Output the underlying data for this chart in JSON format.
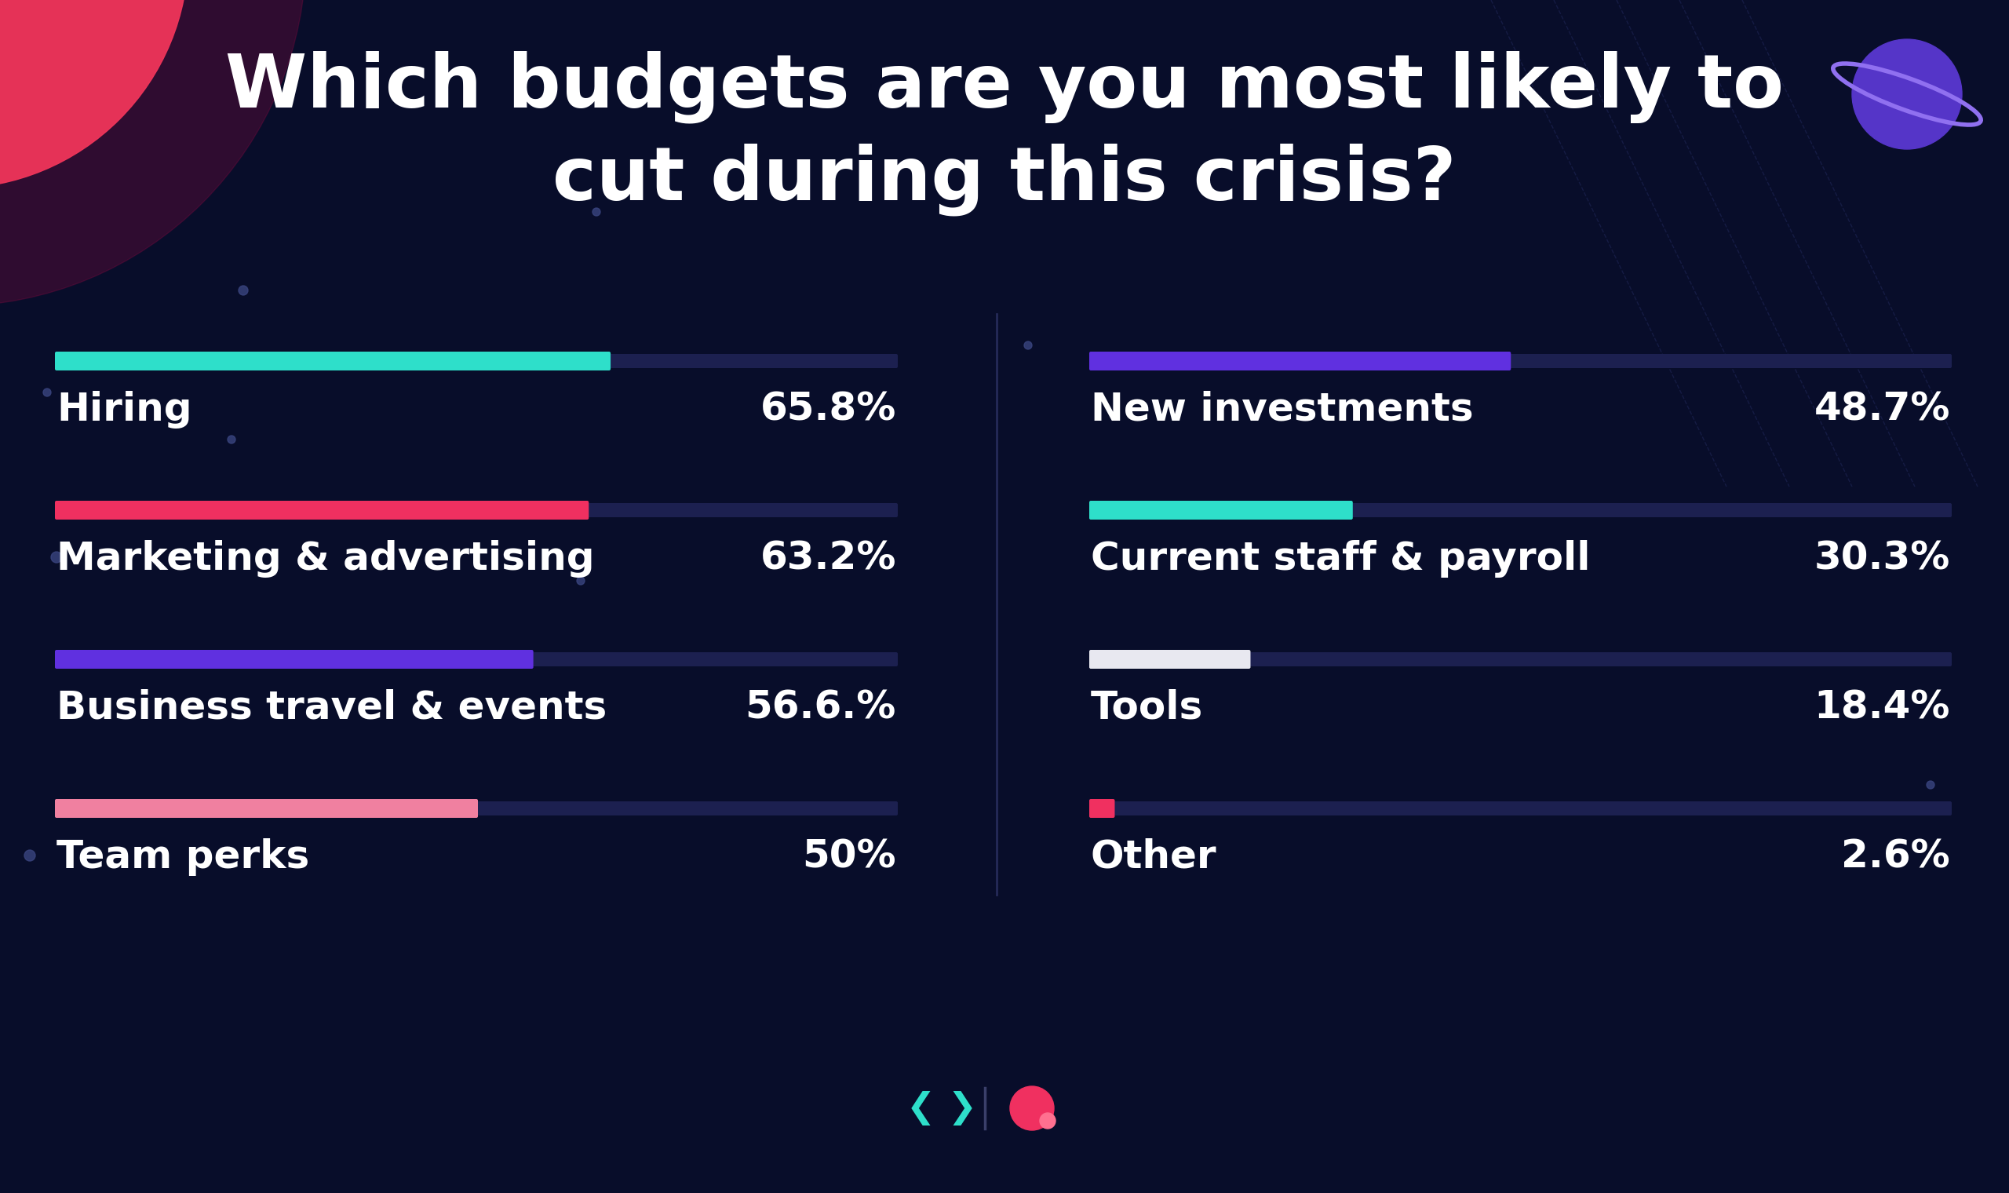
{
  "title_line1": "Which budgets are you most likely to",
  "title_line2": "cut during this crisis?",
  "background_color": "#080d2a",
  "bar_track_color": "#1c2050",
  "left_items": [
    {
      "label": "Hiring",
      "value": 65.8,
      "value_str": "65.8%",
      "color": "#2edfca"
    },
    {
      "label": "Marketing & advertising",
      "value": 63.2,
      "value_str": "63.2%",
      "color": "#f03060"
    },
    {
      "label": "Business travel & events",
      "value": 56.6,
      "value_str": "56.6.%",
      "color": "#6030e0"
    },
    {
      "label": "Team perks",
      "value": 50.0,
      "value_str": "50%",
      "color": "#f080a0"
    }
  ],
  "right_items": [
    {
      "label": "New investments",
      "value": 48.7,
      "value_str": "48.7%",
      "color": "#6030e0"
    },
    {
      "label": "Current staff & payroll",
      "value": 30.3,
      "value_str": "30.3%",
      "color": "#2edfca"
    },
    {
      "label": "Tools",
      "value": 18.4,
      "value_str": "18.4%",
      "color": "#e8e8f0"
    },
    {
      "label": "Other",
      "value": 2.6,
      "value_str": "2.6%",
      "color": "#f03060"
    }
  ],
  "max_value": 100,
  "title_color": "#ffffff",
  "label_color": "#ffffff",
  "value_color": "#ffffff",
  "title_fontsize": 68,
  "label_fontsize": 36,
  "value_fontsize": 36
}
